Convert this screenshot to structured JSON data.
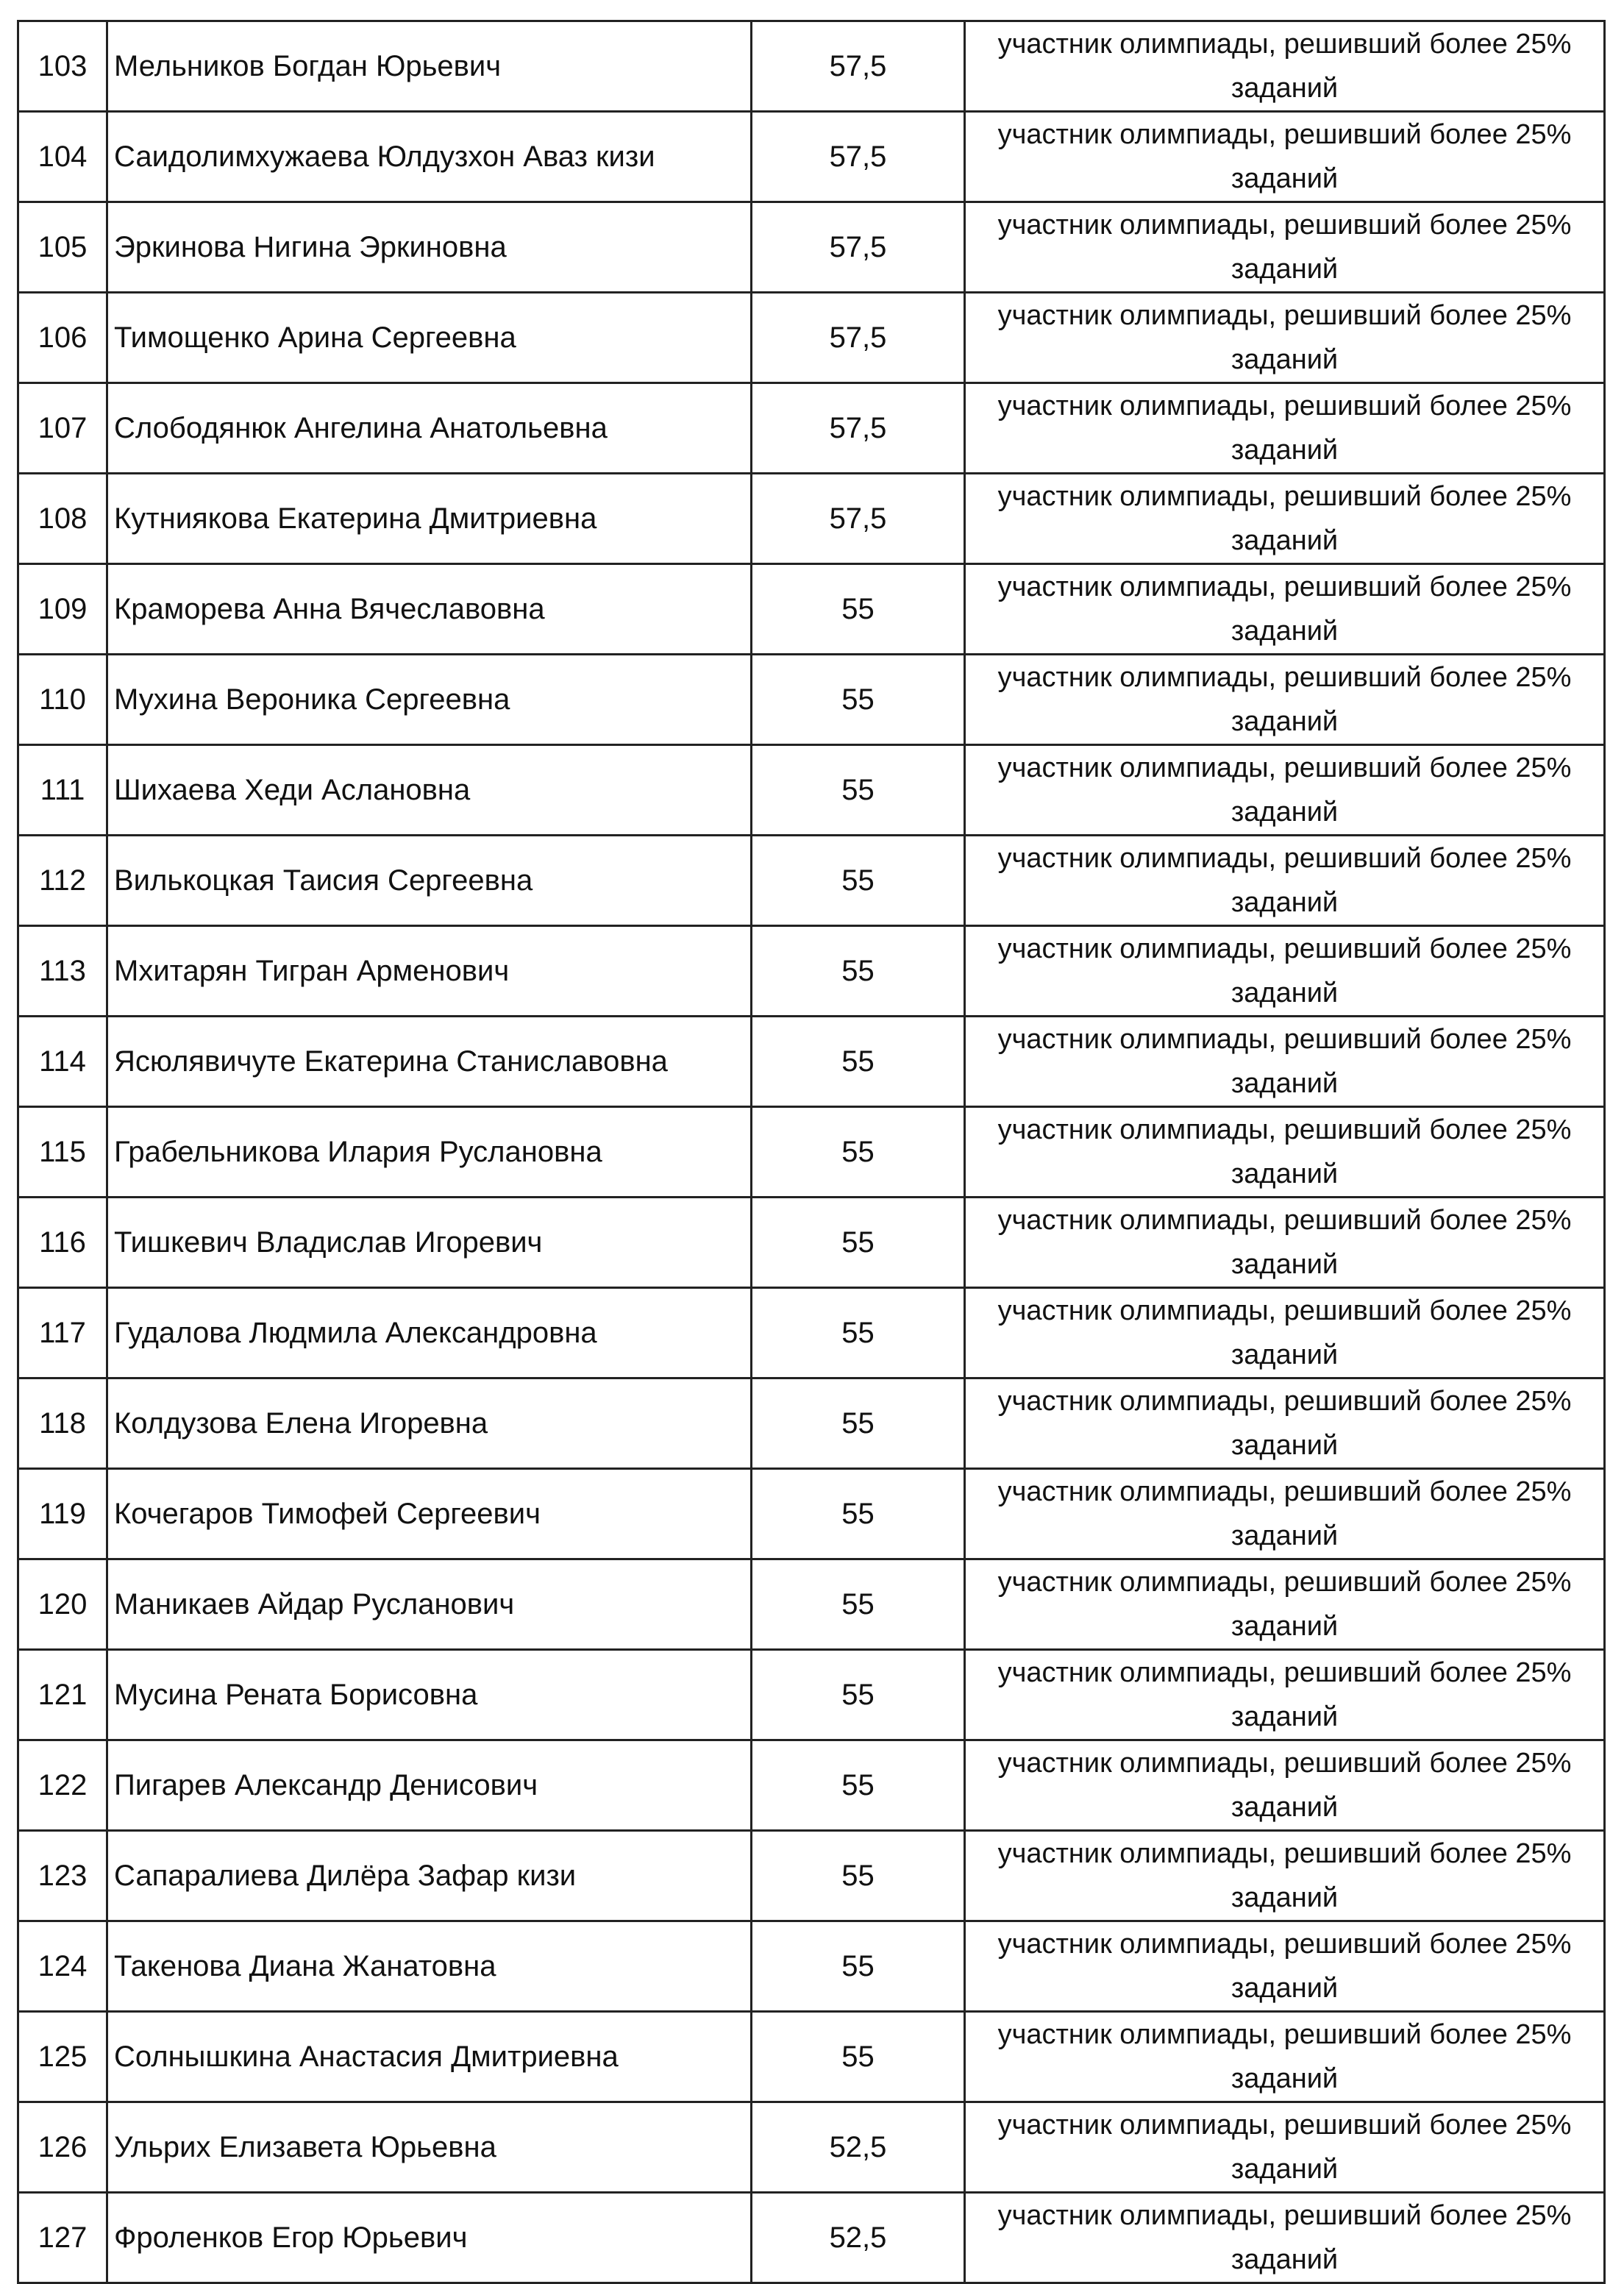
{
  "rows": [
    {
      "num": "103",
      "name": "Мельников Богдан Юрьевич",
      "score": "57,5",
      "status_line1": "участник олимпиады, решивший более 25%",
      "status_line2": "заданий"
    },
    {
      "num": "104",
      "name": "Саидолимхужаева Юлдузхон Аваз кизи",
      "score": "57,5",
      "status_line1": "участник олимпиады, решивший более 25%",
      "status_line2": "заданий"
    },
    {
      "num": "105",
      "name": "Эркинова Нигина Эркиновна",
      "score": "57,5",
      "status_line1": "участник олимпиады, решивший более 25%",
      "status_line2": "заданий"
    },
    {
      "num": "106",
      "name": "Тимощенко Арина Сергеевна",
      "score": "57,5",
      "status_line1": "участник олимпиады, решивший более 25%",
      "status_line2": "заданий"
    },
    {
      "num": "107",
      "name": "Слободянюк Ангелина Анатольевна",
      "score": "57,5",
      "status_line1": "участник олимпиады, решивший более 25%",
      "status_line2": "заданий"
    },
    {
      "num": "108",
      "name": "Кутниякова Екатерина Дмитриевна",
      "score": "57,5",
      "status_line1": "участник олимпиады, решивший более 25%",
      "status_line2": "заданий"
    },
    {
      "num": "109",
      "name": "Краморева Анна Вячеславовна",
      "score": "55",
      "status_line1": "участник олимпиады, решивший более 25%",
      "status_line2": "заданий"
    },
    {
      "num": "110",
      "name": "Мухина Вероника Сергеевна",
      "score": "55",
      "status_line1": "участник олимпиады, решивший более 25%",
      "status_line2": "заданий"
    },
    {
      "num": "111",
      "name": "Шихаева Хеди Аслановна",
      "score": "55",
      "status_line1": "участник олимпиады, решивший более 25%",
      "status_line2": "заданий"
    },
    {
      "num": "112",
      "name": "Вилькоцкая Таисия Сергеевна",
      "score": "55",
      "status_line1": "участник олимпиады, решивший более 25%",
      "status_line2": "заданий"
    },
    {
      "num": "113",
      "name": "Мхитарян Тигран Арменович",
      "score": "55",
      "status_line1": "участник олимпиады, решивший более 25%",
      "status_line2": "заданий"
    },
    {
      "num": "114",
      "name": "Ясюлявичуте Екатерина Станиславовна",
      "score": "55",
      "status_line1": "участник олимпиады, решивший более 25%",
      "status_line2": "заданий"
    },
    {
      "num": "115",
      "name": "Грабельникова Илария Руслановна",
      "score": "55",
      "status_line1": "участник олимпиады, решивший более 25%",
      "status_line2": "заданий"
    },
    {
      "num": "116",
      "name": "Тишкевич Владислав Игоревич",
      "score": "55",
      "status_line1": "участник олимпиады, решивший более 25%",
      "status_line2": "заданий"
    },
    {
      "num": "117",
      "name": "Гудалова Людмила Александровна",
      "score": "55",
      "status_line1": "участник олимпиады, решивший более 25%",
      "status_line2": "заданий"
    },
    {
      "num": "118",
      "name": "Колдузова Елена Игоревна",
      "score": "55",
      "status_line1": "участник олимпиады, решивший более 25%",
      "status_line2": "заданий"
    },
    {
      "num": "119",
      "name": "Кочегаров Тимофей Сергеевич",
      "score": "55",
      "status_line1": "участник олимпиады, решивший более 25%",
      "status_line2": "заданий"
    },
    {
      "num": "120",
      "name": "Маникаев Айдар Русланович",
      "score": "55",
      "status_line1": "участник олимпиады, решивший более 25%",
      "status_line2": "заданий"
    },
    {
      "num": "121",
      "name": "Мусина Рената Борисовна",
      "score": "55",
      "status_line1": "участник олимпиады, решивший более 25%",
      "status_line2": "заданий"
    },
    {
      "num": "122",
      "name": "Пигарев Александр Денисович",
      "score": "55",
      "status_line1": "участник олимпиады, решивший более 25%",
      "status_line2": "заданий"
    },
    {
      "num": "123",
      "name": "Сапаралиева Дилёра Зафар кизи",
      "score": "55",
      "status_line1": "участник олимпиады, решивший более 25%",
      "status_line2": "заданий"
    },
    {
      "num": "124",
      "name": "Такенова Диана Жанатовна",
      "score": "55",
      "status_line1": "участник олимпиады, решивший более 25%",
      "status_line2": "заданий"
    },
    {
      "num": "125",
      "name": "Солнышкина Анастасия Дмитриевна",
      "score": "55",
      "status_line1": "участник олимпиады, решивший более 25%",
      "status_line2": "заданий"
    },
    {
      "num": "126",
      "name": "Ульрих Елизавета Юрьевна",
      "score": "52,5",
      "status_line1": "участник олимпиады, решивший более 25%",
      "status_line2": "заданий"
    },
    {
      "num": "127",
      "name": "Фроленков Егор Юрьевич",
      "score": "52,5",
      "status_line1": "участник олимпиады, решивший более 25%",
      "status_line2": "заданий"
    }
  ]
}
